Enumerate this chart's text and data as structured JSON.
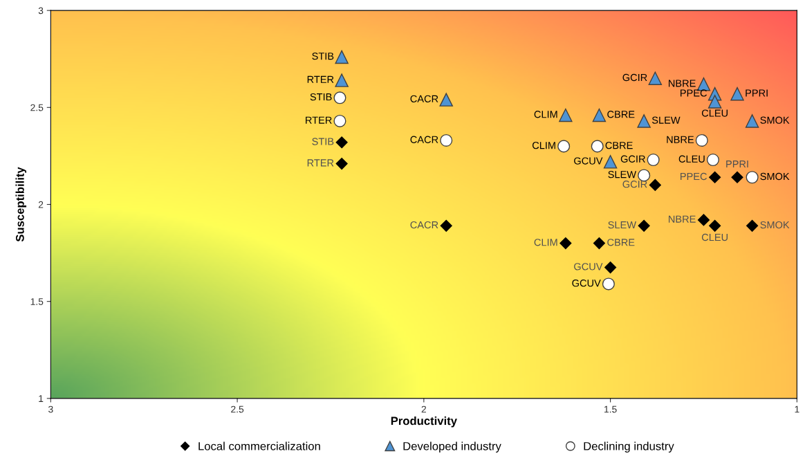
{
  "chart_data": {
    "type": "scatter",
    "xlabel": "Productivity",
    "ylabel": "Susceptibility",
    "xlim": [
      3,
      1
    ],
    "ylim": [
      1,
      3
    ],
    "xticks": [
      3,
      2.5,
      2,
      1.5,
      1
    ],
    "yticks": [
      1,
      1.5,
      2,
      2.5,
      3
    ],
    "grid": false,
    "legend": "bottom",
    "series": [
      {
        "name": "Local commercialization",
        "color": "#000000",
        "marker": "diamond",
        "x": [
          2.22,
          2.22,
          1.94,
          1.62,
          1.53,
          1.5,
          1.41,
          1.38,
          1.25,
          1.22,
          1.22,
          1.16,
          1.12
        ],
        "values": [
          2.32,
          2.21,
          1.89,
          1.8,
          1.8,
          1.675,
          1.89,
          2.1,
          1.92,
          1.89,
          2.14,
          2.14,
          1.89
        ]
      },
      {
        "name": "Developed industry",
        "color": "#4f94d4",
        "marker": "triangle",
        "x": [
          2.22,
          2.22,
          1.94,
          1.62,
          1.53,
          1.41,
          1.5,
          1.38,
          1.25,
          1.22,
          1.22,
          1.16,
          1.12
        ],
        "values": [
          2.76,
          2.64,
          2.54,
          2.46,
          2.46,
          2.43,
          2.22,
          2.65,
          2.62,
          2.57,
          2.53,
          2.57,
          2.43
        ]
      },
      {
        "name": "Declining industry",
        "color": "#ffffff",
        "marker": "circle",
        "x": [
          2.225,
          2.225,
          1.94,
          1.625,
          1.535,
          1.505,
          1.41,
          1.385,
          1.255,
          1.225,
          1.12
        ],
        "values": [
          2.55,
          2.43,
          2.33,
          2.3,
          2.3,
          1.59,
          2.15,
          2.23,
          2.33,
          2.23,
          2.14
        ]
      }
    ],
    "annotations": [
      {
        "text": "STIB",
        "x": 2.22,
        "y": 2.76
      },
      {
        "text": "RTER",
        "x": 2.22,
        "y": 2.64
      },
      {
        "text": "CACR",
        "x": 1.94,
        "y": 2.54
      },
      {
        "text": "CLIM",
        "x": 1.62,
        "y": 2.46
      },
      {
        "text": "CBRE",
        "x": 1.53,
        "y": 2.46
      },
      {
        "text": "SLEW",
        "x": 1.41,
        "y": 2.43
      },
      {
        "text": "GCUV",
        "x": 1.5,
        "y": 2.22
      },
      {
        "text": "GCIR",
        "x": 1.38,
        "y": 2.65
      },
      {
        "text": "NBRE",
        "x": 1.25,
        "y": 2.62
      },
      {
        "text": "PPEC",
        "x": 1.22,
        "y": 2.57
      },
      {
        "text": "CLEU",
        "x": 1.22,
        "y": 2.53
      },
      {
        "text": "PPRI",
        "x": 1.16,
        "y": 2.57
      },
      {
        "text": "SMOK",
        "x": 1.12,
        "y": 2.43
      },
      {
        "text": "STIB",
        "x": 2.225,
        "y": 2.55
      },
      {
        "text": "RTER",
        "x": 2.225,
        "y": 2.43
      },
      {
        "text": "CACR",
        "x": 1.94,
        "y": 2.33
      },
      {
        "text": "CLIM",
        "x": 1.625,
        "y": 2.3
      },
      {
        "text": "CBRE",
        "x": 1.535,
        "y": 2.3
      },
      {
        "text": "GCUV",
        "x": 1.505,
        "y": 1.59
      },
      {
        "text": "SLEW",
        "x": 1.41,
        "y": 2.15
      },
      {
        "text": "GCIR",
        "x": 1.385,
        "y": 2.23
      },
      {
        "text": "NBRE",
        "x": 1.255,
        "y": 2.33
      },
      {
        "text": "CLEU",
        "x": 1.225,
        "y": 2.23
      },
      {
        "text": "SMOK",
        "x": 1.12,
        "y": 2.14
      },
      {
        "text": "STIB",
        "x": 2.22,
        "y": 2.32
      },
      {
        "text": "RTER",
        "x": 2.22,
        "y": 2.21
      },
      {
        "text": "CACR",
        "x": 1.94,
        "y": 1.89
      },
      {
        "text": "CLIM",
        "x": 1.62,
        "y": 1.8
      },
      {
        "text": "CBRE",
        "x": 1.53,
        "y": 1.8
      },
      {
        "text": "GCUV",
        "x": 1.5,
        "y": 1.675
      },
      {
        "text": "SLEW",
        "x": 1.41,
        "y": 1.89
      },
      {
        "text": "GCIR",
        "x": 1.38,
        "y": 2.1
      },
      {
        "text": "NBRE",
        "x": 1.25,
        "y": 1.92
      },
      {
        "text": "CLEU",
        "x": 1.22,
        "y": 1.89
      },
      {
        "text": "PPEC",
        "x": 1.22,
        "y": 2.14
      },
      {
        "text": "PPRI",
        "x": 1.16,
        "y": 2.14
      },
      {
        "text": "SMOK",
        "x": 1.12,
        "y": 1.89
      }
    ]
  }
}
